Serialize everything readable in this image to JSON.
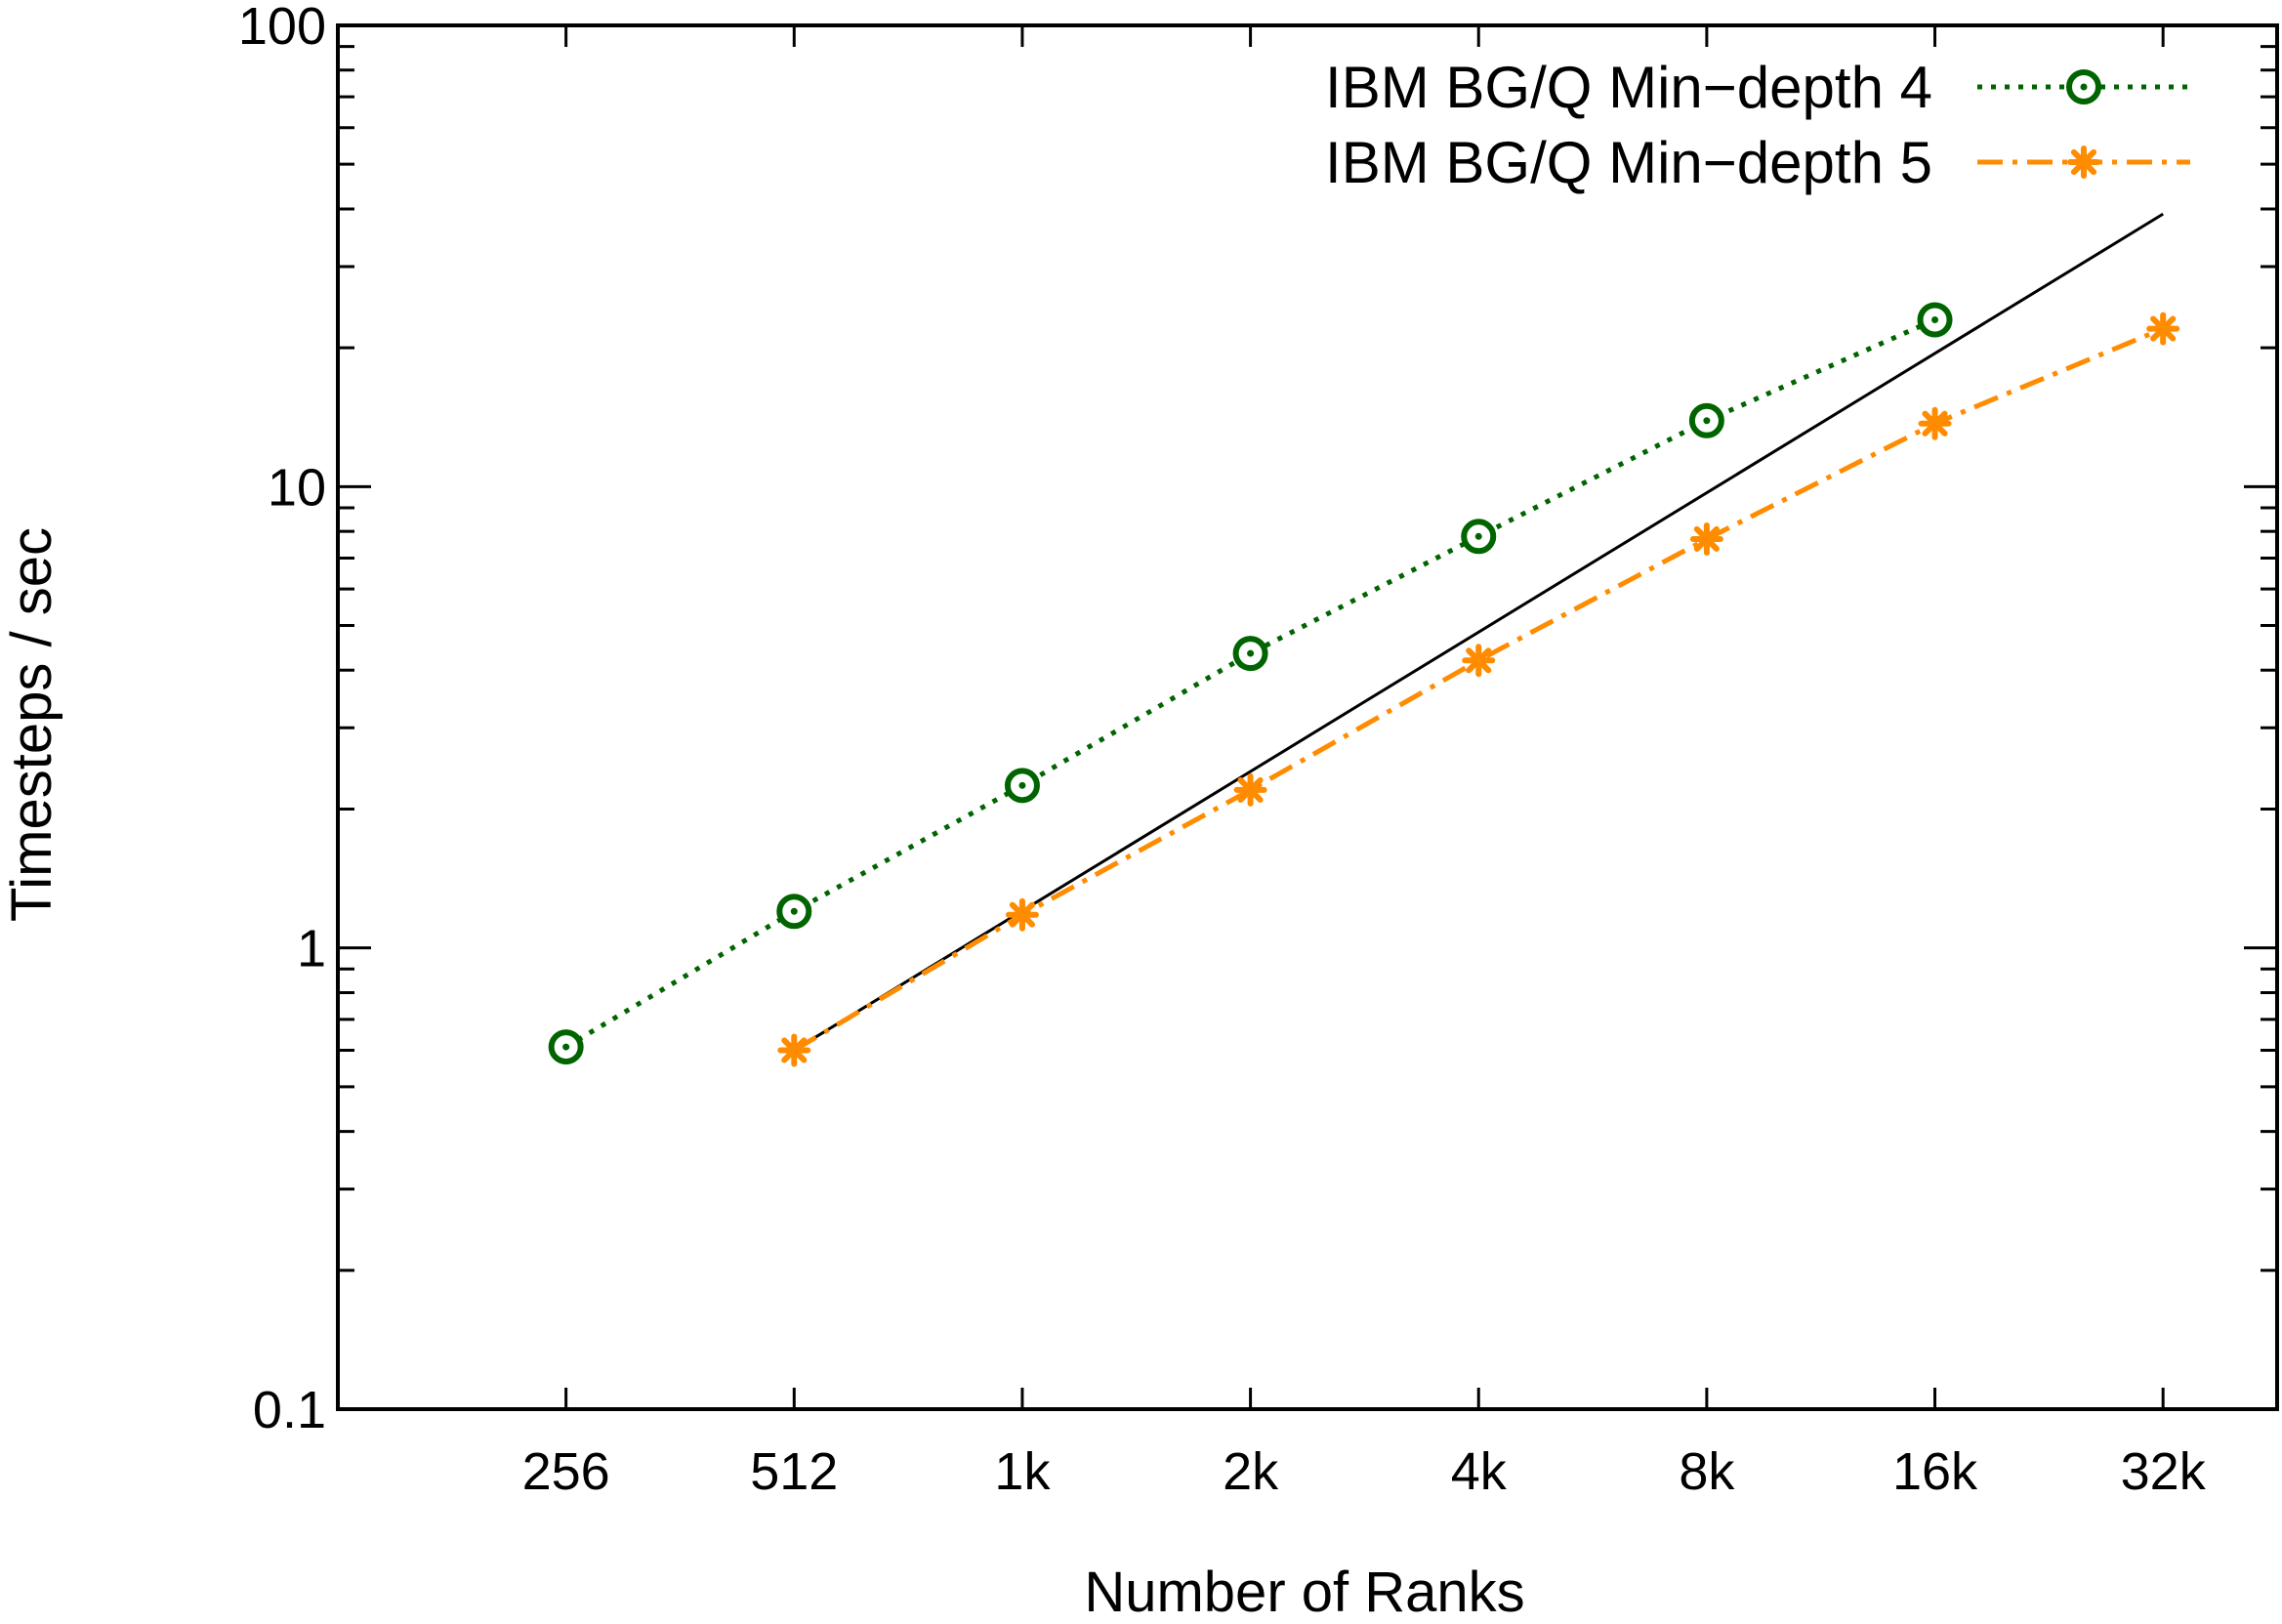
{
  "chart_data": {
    "type": "line",
    "title": "",
    "xlabel": "Number of Ranks",
    "ylabel": "Timesteps / sec",
    "x_scale": "log2",
    "y_scale": "log10",
    "ylim": [
      0.1,
      100
    ],
    "categories": [
      "256",
      "512",
      "1k",
      "2k",
      "4k",
      "8k",
      "16k",
      "32k"
    ],
    "y_ticks": [
      {
        "value": 0.1,
        "label": "0.1"
      },
      {
        "value": 1,
        "label": "1"
      },
      {
        "value": 10,
        "label": "10"
      },
      {
        "value": 100,
        "label": "100"
      }
    ],
    "grid": false,
    "legend_position": "top-right",
    "series": [
      {
        "name": "IBM BG/Q Min−depth 4",
        "color": "#006400",
        "line_style": "dotted",
        "marker": "circle-dot",
        "x": [
          "256",
          "512",
          "1k",
          "2k",
          "4k",
          "8k",
          "16k"
        ],
        "values": [
          0.61,
          1.2,
          2.25,
          4.35,
          7.8,
          13.9,
          23
        ]
      },
      {
        "name": "IBM BG/Q Min−depth 5",
        "color": "#ff8c00",
        "line_style": "dash-dot",
        "marker": "asterisk",
        "x": [
          "512",
          "1k",
          "2k",
          "4k",
          "8k",
          "16k",
          "32k"
        ],
        "values": [
          0.6,
          1.18,
          2.2,
          4.2,
          7.7,
          13.7,
          22
        ]
      }
    ],
    "reference_line": {
      "description": "ideal linear scaling",
      "color": "#000000",
      "x": [
        "512",
        "32k"
      ],
      "values": [
        0.6,
        39
      ]
    }
  }
}
